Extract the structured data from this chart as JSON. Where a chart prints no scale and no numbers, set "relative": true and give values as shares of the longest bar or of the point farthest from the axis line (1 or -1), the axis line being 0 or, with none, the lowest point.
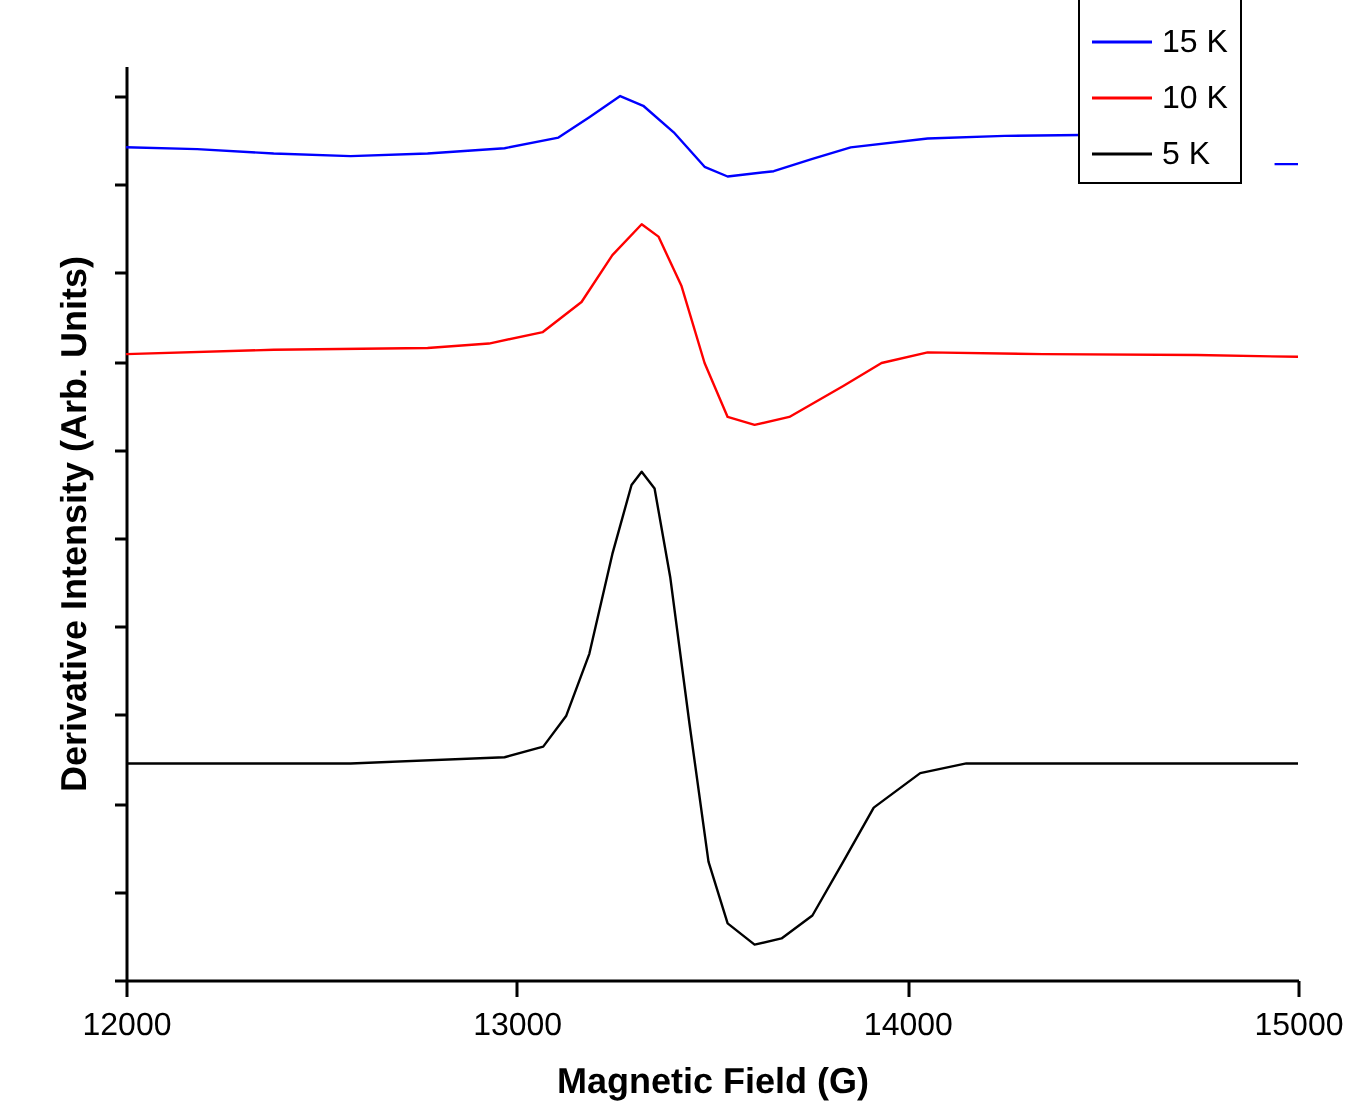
{
  "chart_data": {
    "type": "line",
    "relative": true,
    "xlabel": "Magnetic Field (G)",
    "ylabel": "Derivative Intensity (Arb. Units)",
    "xlim": [
      12000,
      15000
    ],
    "xticks": [
      12000,
      13000,
      14000,
      15000
    ],
    "legend": "top right",
    "grid": false,
    "marker": "none",
    "line_style": "solid",
    "series": [
      {
        "name": "15 K",
        "color": "#0000ff",
        "x": [
          12000,
          12182,
          12378,
          12575,
          12772,
          12969,
          13107,
          13186,
          13265,
          13324,
          13402,
          13481,
          13540,
          13658,
          13757,
          13855,
          14052,
          14249,
          14446,
          14700,
          14940,
          15000
        ],
        "values": [
          0.942,
          0.94,
          0.935,
          0.932,
          0.935,
          0.941,
          0.953,
          0.976,
          1,
          0.989,
          0.959,
          0.92,
          0.909,
          0.915,
          0.929,
          0.942,
          0.952,
          0.955,
          0.956,
          null,
          0.923,
          0.923
        ]
      },
      {
        "name": "10 K",
        "color": "#ff0000",
        "x": [
          12000,
          12378,
          12772,
          12929,
          13067,
          13166,
          13245,
          13320,
          13363,
          13422,
          13481,
          13540,
          13609,
          13698,
          13836,
          13934,
          14052,
          14347,
          14741,
          15000
        ],
        "values": [
          0.708,
          0.713,
          0.715,
          0.72,
          0.733,
          0.767,
          0.82,
          0.855,
          0.841,
          0.785,
          0.698,
          0.637,
          0.628,
          0.637,
          0.672,
          0.698,
          0.71,
          0.708,
          0.707,
          0.705
        ]
      },
      {
        "name": "5 K",
        "color": "#000000",
        "x": [
          12000,
          12575,
          12969,
          13068,
          13127,
          13186,
          13245,
          13294,
          13320,
          13353,
          13393,
          13442,
          13491,
          13540,
          13609,
          13678,
          13757,
          13836,
          13914,
          14033,
          14151,
          14545,
          15000
        ],
        "values": [
          0.245,
          0.245,
          0.252,
          0.264,
          0.299,
          0.369,
          0.482,
          0.56,
          0.575,
          0.556,
          0.456,
          0.291,
          0.134,
          0.064,
          0.04,
          0.047,
          0.073,
          0.134,
          0.195,
          0.234,
          0.245,
          0.245,
          0.245
        ]
      }
    ]
  }
}
